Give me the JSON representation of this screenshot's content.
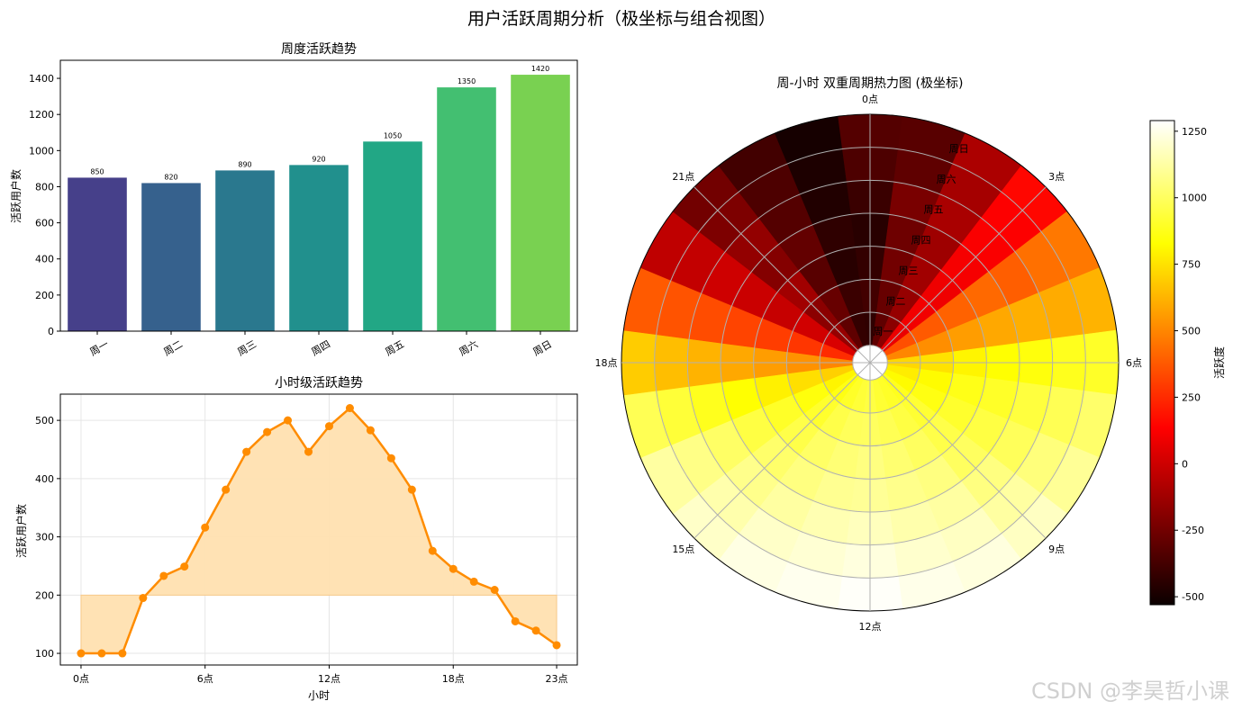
{
  "figure": {
    "title": "用户活跃周期分析（极坐标与组合视图）",
    "watermark": "CSDN @李昊哲小课"
  },
  "chart_data": [
    {
      "type": "bar",
      "title": "周度活跃趋势",
      "xlabel": "",
      "ylabel": "活跃用户数",
      "categories": [
        "周一",
        "周二",
        "周三",
        "周四",
        "周五",
        "周六",
        "周日"
      ],
      "values": [
        850,
        820,
        890,
        920,
        1050,
        1350,
        1420
      ],
      "data_labels": [
        "850",
        "820",
        "890",
        "920",
        "1050",
        "1350",
        "1420"
      ],
      "colors": [
        "#46408a",
        "#36618d",
        "#2a788e",
        "#21908d",
        "#22a785",
        "#43bf71",
        "#79d151"
      ],
      "ylim": [
        0,
        1500
      ],
      "yticks": [
        "0",
        "200",
        "400",
        "600",
        "800",
        "1000",
        "1200",
        "1400"
      ],
      "grid": false
    },
    {
      "type": "area",
      "title": "小时级活跃趋势",
      "xlabel": "小时",
      "ylabel": "活跃用户数",
      "x": [
        0,
        1,
        2,
        3,
        4,
        5,
        6,
        7,
        8,
        9,
        10,
        11,
        12,
        13,
        14,
        15,
        16,
        17,
        18,
        19,
        20,
        21,
        22,
        23
      ],
      "values": [
        100,
        100,
        100,
        195,
        233,
        249,
        316,
        381,
        446,
        480,
        500,
        446,
        490,
        521,
        483,
        435,
        381,
        276,
        245,
        223,
        209,
        155,
        139,
        114
      ],
      "baseline": 200,
      "xlim": [
        -1,
        24
      ],
      "ylim": [
        80,
        545
      ],
      "xticks": [
        "0点",
        "6点",
        "12点",
        "18点",
        "23点"
      ],
      "yticks": [
        "100",
        "200",
        "300",
        "400",
        "500"
      ],
      "line_color": "#ff8c00",
      "fill_color": "#ffe0b0",
      "grid": true
    },
    {
      "type": "heatmap",
      "projection": "polar",
      "title": "周-小时 双重周期热力图 (极坐标)",
      "angle_labels": [
        "0点",
        "3点",
        "6点",
        "9点",
        "12点",
        "15点",
        "18点",
        "21点"
      ],
      "radial_labels": [
        "周一",
        "周二",
        "周三",
        "周四",
        "周五",
        "周六",
        "周日"
      ],
      "hours": 24,
      "days": 7,
      "colormap": "hot",
      "vmin": -530,
      "vmax": 1290,
      "colorbar_label": "活跃度",
      "colorbar_ticks": [
        "-500",
        "-250",
        "0",
        "250",
        "500",
        "750",
        "1000",
        "1250"
      ],
      "values": [
        [
          -430,
          -380,
          -420,
          -450,
          -400,
          -350,
          -330
        ],
        [
          -300,
          -280,
          -250,
          -260,
          -230,
          -300,
          -320
        ],
        [
          -180,
          -150,
          -120,
          -130,
          -100,
          -110,
          -90
        ],
        [
          80,
          100,
          90,
          110,
          120,
          130,
          150
        ],
        [
          350,
          380,
          400,
          420,
          390,
          440,
          460
        ],
        [
          500,
          520,
          560,
          590,
          610,
          600,
          620
        ],
        [
          720,
          750,
          800,
          830,
          850,
          880,
          900
        ],
        [
          780,
          820,
          870,
          900,
          940,
          980,
          1020
        ],
        [
          820,
          860,
          910,
          950,
          990,
          1050,
          1100
        ],
        [
          880,
          920,
          960,
          1000,
          1060,
          1120,
          1180
        ],
        [
          900,
          950,
          1000,
          1060,
          1120,
          1180,
          1230
        ],
        [
          920,
          980,
          1030,
          1080,
          1140,
          1200,
          1250
        ],
        [
          950,
          1000,
          1060,
          1100,
          1170,
          1230,
          1280
        ],
        [
          930,
          990,
          1040,
          1090,
          1150,
          1210,
          1260
        ],
        [
          900,
          960,
          1010,
          1060,
          1120,
          1190,
          1240
        ],
        [
          860,
          910,
          960,
          1020,
          1080,
          1140,
          1190
        ],
        [
          800,
          850,
          900,
          950,
          1010,
          1070,
          1120
        ],
        [
          700,
          740,
          790,
          830,
          880,
          930,
          980
        ],
        [
          500,
          530,
          560,
          590,
          620,
          650,
          690
        ],
        [
          250,
          280,
          300,
          320,
          340,
          360,
          380
        ],
        [
          30,
          10,
          -20,
          -10,
          0,
          -30,
          -40
        ],
        [
          -150,
          -180,
          -120,
          -200,
          -160,
          -220,
          -250
        ],
        [
          -300,
          -280,
          -320,
          -290,
          -330,
          -350,
          -380
        ],
        [
          -420,
          -400,
          -450,
          -430,
          -470,
          -480,
          -500
        ]
      ]
    }
  ]
}
